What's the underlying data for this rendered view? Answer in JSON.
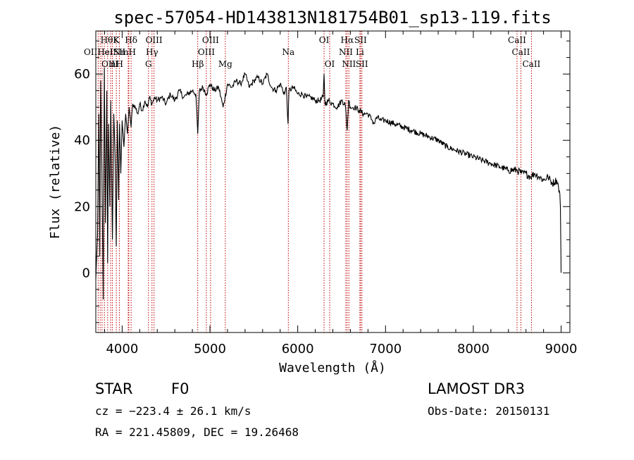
{
  "chart_data": {
    "type": "line",
    "title": "spec-57054-HD143813N181754B01_sp13-119.fits",
    "xlabel": "Wavelength (Å)",
    "ylabel": "Flux (relative)",
    "xlim": [
      3700,
      9100
    ],
    "ylim": [
      -18,
      73
    ],
    "x_ticks": [
      4000,
      5000,
      6000,
      7000,
      8000,
      9000
    ],
    "x_tick_labels": [
      "4000",
      "5000",
      "6000",
      "7000",
      "8000",
      "9000"
    ],
    "y_ticks": [
      0,
      20,
      40,
      60
    ],
    "y_tick_labels": [
      "0",
      "20",
      "40",
      "60"
    ],
    "series": [
      {
        "name": "flux",
        "x": [
          3700,
          3720,
          3735,
          3745,
          3755,
          3770,
          3785,
          3797,
          3810,
          3825,
          3835,
          3845,
          3860,
          3870,
          3889,
          3905,
          3920,
          3933,
          3945,
          3960,
          3970,
          3985,
          4000,
          4020,
          4040,
          4060,
          4080,
          4102,
          4120,
          4150,
          4180,
          4200,
          4230,
          4260,
          4290,
          4310,
          4340,
          4370,
          4400,
          4450,
          4500,
          4550,
          4600,
          4650,
          4700,
          4750,
          4800,
          4840,
          4861,
          4880,
          4920,
          4960,
          5000,
          5050,
          5100,
          5150,
          5200,
          5250,
          5300,
          5350,
          5400,
          5450,
          5500,
          5550,
          5600,
          5650,
          5700,
          5750,
          5800,
          5850,
          5870,
          5890,
          5900,
          5950,
          6000,
          6050,
          6100,
          6150,
          6200,
          6250,
          6290,
          6300,
          6310,
          6350,
          6400,
          6450,
          6500,
          6540,
          6563,
          6580,
          6600,
          6650,
          6700,
          6750,
          6800,
          6850,
          6870,
          6900,
          6950,
          7000,
          7100,
          7200,
          7300,
          7400,
          7500,
          7600,
          7700,
          7800,
          7900,
          8000,
          8100,
          8200,
          8300,
          8400,
          8500,
          8550,
          8600,
          8650,
          8700,
          8750,
          8800,
          8850,
          8900,
          8950,
          8970,
          8985,
          8992,
          8998,
          9000
        ],
        "y": [
          -2,
          12,
          48,
          5,
          58,
          30,
          -8,
          62,
          15,
          55,
          3,
          45,
          20,
          52,
          10,
          48,
          35,
          8,
          46,
          22,
          45,
          30,
          46,
          38,
          48,
          42,
          50,
          44,
          51,
          50,
          48,
          51,
          49,
          52,
          50,
          53,
          51,
          53,
          52,
          53,
          51,
          54,
          52,
          55,
          53,
          54,
          55,
          54,
          42,
          55,
          56,
          54,
          57,
          55,
          56,
          50,
          57,
          56,
          58,
          57,
          60,
          56,
          58,
          59,
          57,
          60,
          56,
          55,
          57,
          54,
          56,
          45,
          55,
          56,
          54,
          54,
          53,
          53,
          52,
          52,
          53,
          60,
          51,
          52,
          51,
          50,
          52,
          51,
          43,
          52,
          50,
          50,
          49,
          48,
          48,
          46,
          45,
          47,
          46,
          46,
          45,
          44,
          43,
          42,
          41,
          40,
          38,
          37,
          36,
          35,
          34,
          33,
          32,
          31,
          31,
          30,
          30,
          29,
          30,
          29,
          28,
          29,
          27,
          28,
          26,
          24,
          20,
          5,
          0
        ]
      }
    ],
    "line_markers": [
      {
        "label": "Hδ",
        "wl": 4102,
        "row": 0
      },
      {
        "label": "OIII",
        "wl": 4363,
        "row": 0
      },
      {
        "label": "OIII",
        "wl": 5007,
        "row": 0
      },
      {
        "label": "OI",
        "wl": 6300,
        "row": 0
      },
      {
        "label": "Hα",
        "wl": 6563,
        "row": 0
      },
      {
        "label": "SII",
        "wl": 6716,
        "row": 0
      },
      {
        "label": "CaII",
        "wl": 8498,
        "row": 0
      },
      {
        "label": "Hγ",
        "wl": 4340,
        "row": 1
      },
      {
        "label": "OIII",
        "wl": 4959,
        "row": 1
      },
      {
        "label": "Na",
        "wl": 5893,
        "row": 1
      },
      {
        "label": "NII",
        "wl": 6548,
        "row": 1
      },
      {
        "label": "Li",
        "wl": 6708,
        "row": 1
      },
      {
        "label": "CaII",
        "wl": 8542,
        "row": 1
      },
      {
        "label": "G",
        "wl": 4300,
        "row": 2
      },
      {
        "label": "Hβ",
        "wl": 4861,
        "row": 2
      },
      {
        "label": "Mg",
        "wl": 5175,
        "row": 2
      },
      {
        "label": "OI",
        "wl": 6364,
        "row": 2
      },
      {
        "label": "NII",
        "wl": 6583,
        "row": 2
      },
      {
        "label": "SII",
        "wl": 6731,
        "row": 2
      },
      {
        "label": "CaII",
        "wl": 8662,
        "row": 2
      }
    ],
    "crowded_label_groups": [
      {
        "text": "HθK",
        "row": 0,
        "wl": 3800
      },
      {
        "text": "K",
        "row": 0,
        "wl": 3934
      },
      {
        "text": "OIIHeINmH",
        "row": 1,
        "wl": 3760
      },
      {
        "text": "eISII",
        "row": 1,
        "wl": 3920
      },
      {
        "text": "OIII",
        "row": 2,
        "wl": 3740
      },
      {
        "text": "nH",
        "row": 2,
        "wl": 3940
      }
    ],
    "extra_marker_lines": [
      3727,
      3750,
      3771,
      3798,
      3835,
      3869,
      3889,
      3934,
      3968,
      4069,
      4076
    ]
  },
  "info": {
    "obj_class": "STAR",
    "subclass": "F0",
    "survey": "LAMOST DR3",
    "cz": "cz = −223.4 ± 26.1 km/s",
    "obs_date": "Obs-Date: 20150131",
    "coords": "RA = 221.45809, DEC =  19.26468"
  },
  "colors": {
    "marker_line": "#c00000",
    "spectrum": "#000000"
  }
}
